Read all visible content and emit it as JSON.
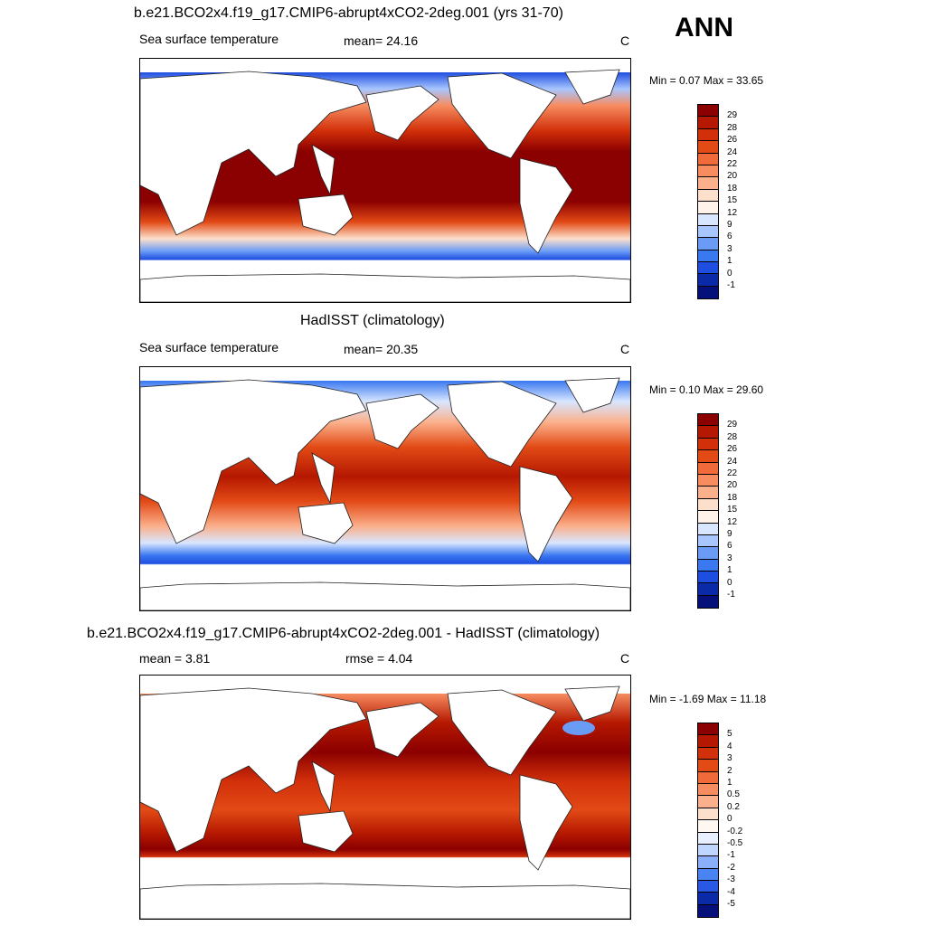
{
  "season_label": "ANN",
  "palette_warm": {
    "very_hot": "#8b0000",
    "hot": "#d23a0a",
    "warm": "#f06a3a",
    "mild": "#ffc6a8",
    "cool": "#cde0ff",
    "cold": "#3a78f0",
    "very_cold": "#0a2aa8"
  },
  "panels": [
    {
      "title": "b.e21.BCO2x4.f19_g17.CMIP6-abrupt4xCO2-2deg.001 (yrs 31-70)",
      "left_label": "Sea surface temperature",
      "center_label": "mean=  24.16",
      "units": "C",
      "minmax": "Min =   0.07 Max =  33.65",
      "colorbar_ticks": [
        "29",
        "28",
        "26",
        "24",
        "22",
        "20",
        "18",
        "15",
        "12",
        "9",
        "6",
        "3",
        "1",
        "0",
        "-1"
      ],
      "colorbar_colors": [
        "#8b0000",
        "#b51800",
        "#d2300a",
        "#e24a16",
        "#f06a3a",
        "#f78c60",
        "#fbb08c",
        "#fde0cc",
        "#fff2e8",
        "#d8e6ff",
        "#a8c6ff",
        "#6a9cf6",
        "#3a78f0",
        "#1e4ee0",
        "#0a2aa8",
        "#05107a"
      ]
    },
    {
      "title": "HadISST (climatology)",
      "left_label": "Sea surface temperature",
      "center_label": "mean=  20.35",
      "units": "C",
      "minmax": "Min =   0.10 Max =  29.60",
      "colorbar_ticks": [
        "29",
        "28",
        "26",
        "24",
        "22",
        "20",
        "18",
        "15",
        "12",
        "9",
        "6",
        "3",
        "1",
        "0",
        "-1"
      ],
      "colorbar_colors": [
        "#8b0000",
        "#b51800",
        "#d2300a",
        "#e24a16",
        "#f06a3a",
        "#f78c60",
        "#fbb08c",
        "#fde0cc",
        "#fff2e8",
        "#d8e6ff",
        "#a8c6ff",
        "#6a9cf6",
        "#3a78f0",
        "#1e4ee0",
        "#0a2aa8",
        "#05107a"
      ]
    },
    {
      "title": "b.e21.BCO2x4.f19_g17.CMIP6-abrupt4xCO2-2deg.001 - HadISST (climatology)",
      "left_label": "mean =   3.81",
      "center_label": "rmse =   4.04",
      "units": "C",
      "minmax": "Min =  -1.69 Max =  11.18",
      "colorbar_ticks": [
        "5",
        "4",
        "3",
        "2",
        "1",
        "0.5",
        "0.2",
        "0",
        "-0.2",
        "-0.5",
        "-1",
        "-2",
        "-3",
        "-4",
        "-5"
      ],
      "colorbar_colors": [
        "#8b0000",
        "#b51800",
        "#d2300a",
        "#e24a16",
        "#f06a3a",
        "#f78c60",
        "#fbb08c",
        "#fde0cc",
        "#fff8f2",
        "#e8f0ff",
        "#c0d6ff",
        "#8ab0fa",
        "#4a84f2",
        "#2858e4",
        "#0a2aa8",
        "#05107a"
      ]
    }
  ]
}
